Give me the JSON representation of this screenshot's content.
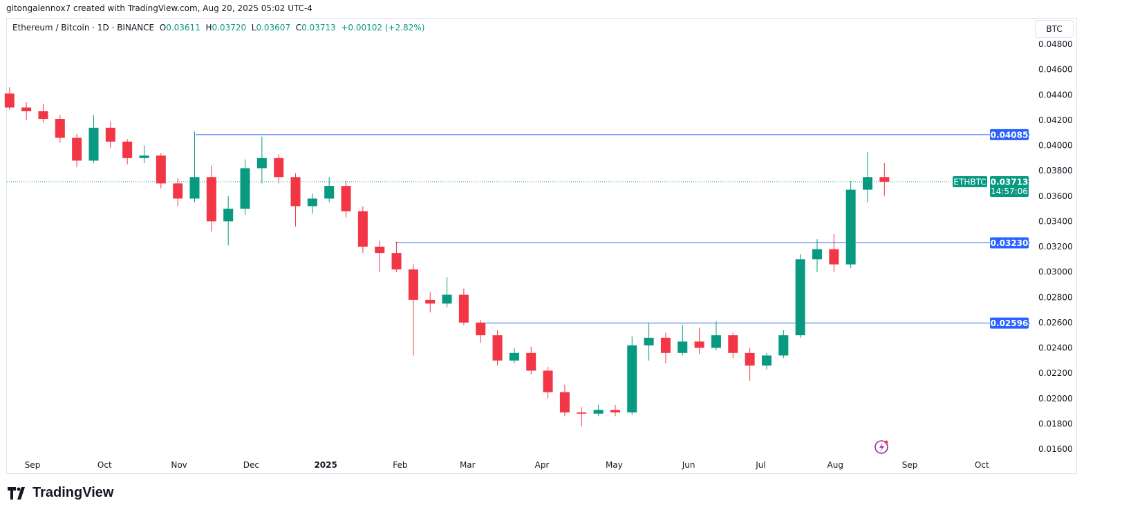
{
  "credit": "gitongalennox7 created with TradingView.com, Aug 20, 2025 05:02 UTC-4",
  "legend": {
    "symbol": "Ethereum / Bitcoin · 1D · BINANCE",
    "o_label": "O",
    "o": "0.03611",
    "h_label": "H",
    "h": "0.03720",
    "l_label": "L",
    "l": "0.03607",
    "c_label": "C",
    "c": "0.03713",
    "change": "+0.00102 (+2.82%)"
  },
  "unit_button": "BTC",
  "logo_text": "TradingView",
  "colors": {
    "up": "#089981",
    "down": "#f23645",
    "level": "#2962ff",
    "grid": "#e0e3eb"
  },
  "chart_data": {
    "type": "candlestick",
    "symbol": "ETHBTC",
    "ylim": [
      0.016,
      0.049
    ],
    "yticks": [
      "0.04800",
      "0.04600",
      "0.04400",
      "0.04200",
      "0.04000",
      "0.03800",
      "0.03600",
      "0.03400",
      "0.03200",
      "0.03000",
      "0.02800",
      "0.02600",
      "0.02400",
      "0.02200",
      "0.02000",
      "0.01800",
      "0.01600"
    ],
    "xticks": [
      {
        "label": "Sep",
        "date": "2024-09-01"
      },
      {
        "label": "Oct",
        "date": "2024-10-01"
      },
      {
        "label": "Nov",
        "date": "2024-11-01"
      },
      {
        "label": "Dec",
        "date": "2024-12-01"
      },
      {
        "label": "2025",
        "date": "2025-01-01",
        "bold": true
      },
      {
        "label": "Feb",
        "date": "2025-02-01"
      },
      {
        "label": "Mar",
        "date": "2025-03-01"
      },
      {
        "label": "Apr",
        "date": "2025-04-01"
      },
      {
        "label": "May",
        "date": "2025-05-01"
      },
      {
        "label": "Jun",
        "date": "2025-06-01"
      },
      {
        "label": "Jul",
        "date": "2025-07-01"
      },
      {
        "label": "Aug",
        "date": "2025-08-01"
      },
      {
        "label": "Sep",
        "date": "2025-09-01"
      },
      {
        "label": "Oct",
        "date": "2025-10-01"
      }
    ],
    "candles_note_period": "1W approx",
    "candles": [
      [
        "2024-08-19",
        0.0441,
        0.0446,
        0.0428,
        0.043
      ],
      [
        "2024-08-26",
        0.043,
        0.0434,
        0.042,
        0.0427
      ],
      [
        "2024-09-02",
        0.0427,
        0.0433,
        0.0418,
        0.0421
      ],
      [
        "2024-09-09",
        0.0421,
        0.0424,
        0.0402,
        0.0406
      ],
      [
        "2024-09-16",
        0.0406,
        0.0409,
        0.0383,
        0.0388
      ],
      [
        "2024-09-23",
        0.0388,
        0.0424,
        0.0386,
        0.0414
      ],
      [
        "2024-09-30",
        0.0414,
        0.0419,
        0.0398,
        0.0403
      ],
      [
        "2024-10-07",
        0.0403,
        0.0405,
        0.0385,
        0.039
      ],
      [
        "2024-10-14",
        0.039,
        0.04,
        0.0386,
        0.0392
      ],
      [
        "2024-10-21",
        0.0392,
        0.0394,
        0.0366,
        0.037
      ],
      [
        "2024-10-28",
        0.037,
        0.0374,
        0.0352,
        0.0358
      ],
      [
        "2024-11-04",
        0.0358,
        0.0411,
        0.0355,
        0.0375
      ],
      [
        "2024-11-11",
        0.0375,
        0.0384,
        0.0332,
        0.034
      ],
      [
        "2024-11-18",
        0.034,
        0.036,
        0.0321,
        0.035
      ],
      [
        "2024-11-25",
        0.035,
        0.0389,
        0.0345,
        0.0382
      ],
      [
        "2024-12-02",
        0.0382,
        0.0407,
        0.037,
        0.039
      ],
      [
        "2024-12-09",
        0.039,
        0.0393,
        0.037,
        0.0375
      ],
      [
        "2024-12-16",
        0.0375,
        0.0378,
        0.0336,
        0.0352
      ],
      [
        "2024-12-23",
        0.0352,
        0.0362,
        0.0346,
        0.0358
      ],
      [
        "2024-12-30",
        0.0358,
        0.0375,
        0.0355,
        0.0368
      ],
      [
        "2025-01-06",
        0.0368,
        0.0372,
        0.0343,
        0.0348
      ],
      [
        "2025-01-13",
        0.0348,
        0.0352,
        0.0315,
        0.032
      ],
      [
        "2025-01-20",
        0.032,
        0.0325,
        0.03,
        0.0315
      ],
      [
        "2025-01-27",
        0.0315,
        0.0324,
        0.03,
        0.0302
      ],
      [
        "2025-02-03",
        0.0302,
        0.0306,
        0.0234,
        0.0278
      ],
      [
        "2025-02-10",
        0.0278,
        0.0284,
        0.0268,
        0.0275
      ],
      [
        "2025-02-17",
        0.0275,
        0.0296,
        0.0272,
        0.0282
      ],
      [
        "2025-02-24",
        0.0282,
        0.0287,
        0.0258,
        0.026
      ],
      [
        "2025-03-03",
        0.026,
        0.0262,
        0.0244,
        0.025
      ],
      [
        "2025-03-10",
        0.025,
        0.0254,
        0.0226,
        0.023
      ],
      [
        "2025-03-17",
        0.023,
        0.024,
        0.0228,
        0.0236
      ],
      [
        "2025-03-24",
        0.0236,
        0.0241,
        0.0219,
        0.0222
      ],
      [
        "2025-03-31",
        0.0222,
        0.0225,
        0.02,
        0.0205
      ],
      [
        "2025-04-07",
        0.0205,
        0.0211,
        0.0186,
        0.0189
      ],
      [
        "2025-04-14",
        0.0189,
        0.0193,
        0.0178,
        0.0188
      ],
      [
        "2025-04-21",
        0.0188,
        0.0195,
        0.0186,
        0.0191
      ],
      [
        "2025-04-28",
        0.0191,
        0.0195,
        0.0186,
        0.0189
      ],
      [
        "2025-05-05",
        0.0189,
        0.0249,
        0.0187,
        0.0242
      ],
      [
        "2025-05-12",
        0.0242,
        0.026,
        0.023,
        0.0248
      ],
      [
        "2025-05-19",
        0.0248,
        0.0252,
        0.0228,
        0.0236
      ],
      [
        "2025-05-26",
        0.0236,
        0.0258,
        0.0234,
        0.0245
      ],
      [
        "2025-06-02",
        0.0245,
        0.0256,
        0.0235,
        0.024
      ],
      [
        "2025-06-09",
        0.024,
        0.0261,
        0.0238,
        0.025
      ],
      [
        "2025-06-16",
        0.025,
        0.0252,
        0.0232,
        0.0236
      ],
      [
        "2025-06-23",
        0.0236,
        0.024,
        0.0214,
        0.0226
      ],
      [
        "2025-06-30",
        0.0226,
        0.0236,
        0.0223,
        0.0234
      ],
      [
        "2025-07-07",
        0.0234,
        0.0254,
        0.0232,
        0.025
      ],
      [
        "2025-07-14",
        0.025,
        0.0314,
        0.0248,
        0.031
      ],
      [
        "2025-07-21",
        0.031,
        0.0326,
        0.03,
        0.0318
      ],
      [
        "2025-07-28",
        0.0318,
        0.033,
        0.03,
        0.0306
      ],
      [
        "2025-08-04",
        0.0306,
        0.0372,
        0.0303,
        0.0365
      ],
      [
        "2025-08-11",
        0.0365,
        0.0395,
        0.0355,
        0.0375
      ],
      [
        "2025-08-18",
        0.0375,
        0.0386,
        0.036,
        0.03713
      ]
    ],
    "levels": [
      {
        "value": 0.04085,
        "label": "0.04085",
        "from": "2024-11-08"
      },
      {
        "value": 0.0323,
        "label": "0.03230",
        "from": "2025-01-30"
      },
      {
        "value": 0.02596,
        "label": "0.02596",
        "from": "2025-03-08"
      }
    ],
    "last_price": {
      "value": 0.03713,
      "label": "0.03713",
      "countdown": "14:57:06",
      "symbol_label": "ETHBTC"
    }
  }
}
